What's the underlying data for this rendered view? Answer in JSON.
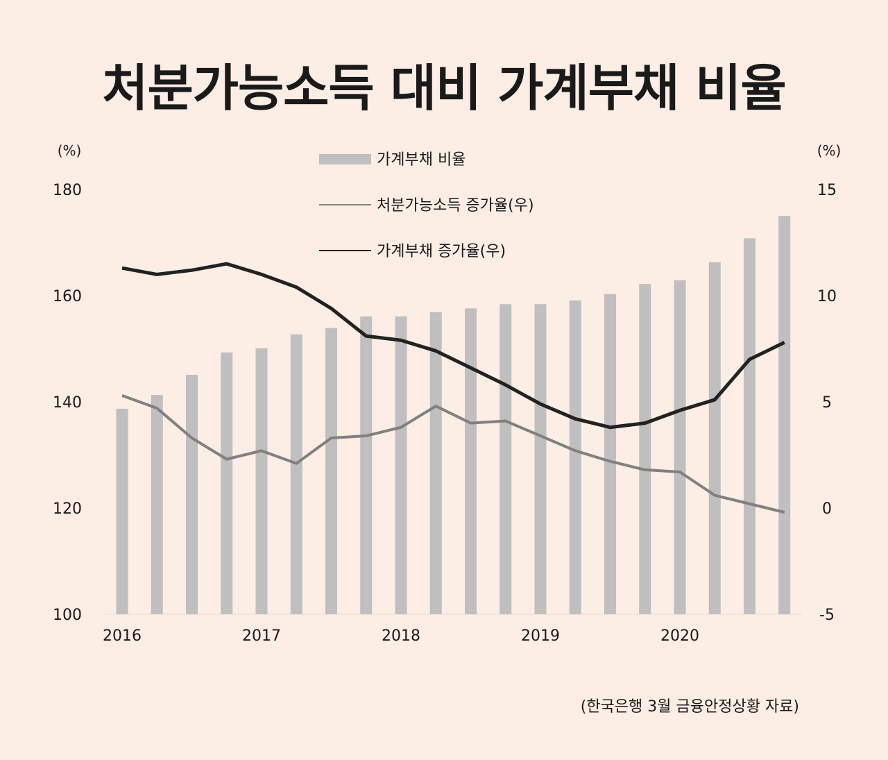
{
  "chart_data": {
    "type": "bar+line",
    "title": "처분가능소득 대비 가계부채 비율",
    "source": "(한국은행 3월 금융안정상황 자료)",
    "categories": [
      "2016Q1",
      "2016Q2",
      "2016Q3",
      "2016Q4",
      "2017Q1",
      "2017Q2",
      "2017Q3",
      "2017Q4",
      "2018Q1",
      "2018Q2",
      "2018Q3",
      "2018Q4",
      "2019Q1",
      "2019Q2",
      "2019Q3",
      "2019Q4",
      "2020Q1",
      "2020Q2",
      "2020Q3",
      "2020Q4"
    ],
    "x_tick_labels": [
      "2016",
      "2017",
      "2018",
      "2019",
      "2020"
    ],
    "left_axis": {
      "unit": "(%)",
      "range": [
        100,
        180
      ],
      "ticks": [
        100,
        120,
        140,
        160,
        180
      ]
    },
    "right_axis": {
      "unit": "(%)",
      "range": [
        -5,
        15
      ],
      "ticks": [
        -5,
        0,
        5,
        10,
        15
      ]
    },
    "legend_position": "top-center",
    "grid": false,
    "series": [
      {
        "name": "가계부채  비율",
        "type": "bar",
        "axis": "left",
        "color": "#bfbfbf",
        "values": [
          138.7,
          141.3,
          145.1,
          149.3,
          150.1,
          152.7,
          153.9,
          156.1,
          156.1,
          156.9,
          157.6,
          158.4,
          158.4,
          159.1,
          160.3,
          162.2,
          162.9,
          166.3,
          170.8,
          175.0
        ]
      },
      {
        "name": "처분가능소득  증가율(우)",
        "type": "line",
        "axis": "right",
        "color": "#808080",
        "values": [
          5.3,
          4.7,
          3.3,
          2.3,
          2.7,
          2.1,
          3.3,
          3.4,
          3.8,
          4.8,
          4.0,
          4.1,
          3.4,
          2.7,
          2.2,
          1.8,
          1.7,
          0.6,
          0.2,
          -0.2
        ]
      },
      {
        "name": "가계부채  증가율(우)",
        "type": "line",
        "axis": "right",
        "color": "#222222",
        "values": [
          11.3,
          11.0,
          11.2,
          11.5,
          11.0,
          10.4,
          9.4,
          8.1,
          7.9,
          7.4,
          6.6,
          5.8,
          4.9,
          4.2,
          3.8,
          4.0,
          4.6,
          5.1,
          7.0,
          7.8
        ]
      }
    ]
  }
}
